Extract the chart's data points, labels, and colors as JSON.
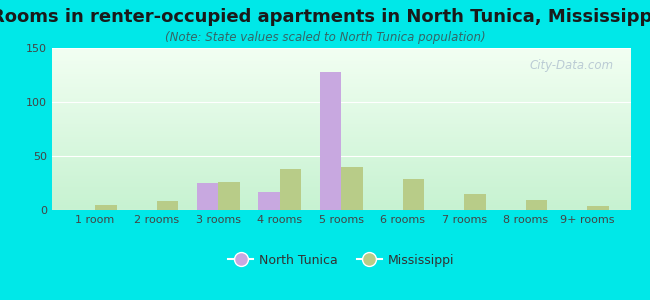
{
  "title": "Rooms in renter-occupied apartments in North Tunica, Mississippi",
  "subtitle": "(Note: State values scaled to North Tunica population)",
  "categories": [
    "1 room",
    "2 rooms",
    "3 rooms",
    "4 rooms",
    "5 rooms",
    "6 rooms",
    "7 rooms",
    "8 rooms",
    "9+ rooms"
  ],
  "north_tunica": [
    0,
    0,
    25,
    17,
    128,
    0,
    0,
    0,
    0
  ],
  "mississippi": [
    5,
    8,
    26,
    38,
    40,
    29,
    15,
    9,
    4
  ],
  "north_tunica_color": "#c8a8e0",
  "mississippi_color": "#b8cc88",
  "background_color": "#00e8e8",
  "ylim": [
    0,
    150
  ],
  "yticks": [
    0,
    50,
    100,
    150
  ],
  "bar_width": 0.35,
  "title_fontsize": 13,
  "subtitle_fontsize": 8.5,
  "tick_fontsize": 8,
  "legend_fontsize": 9,
  "watermark": "City-Data.com"
}
